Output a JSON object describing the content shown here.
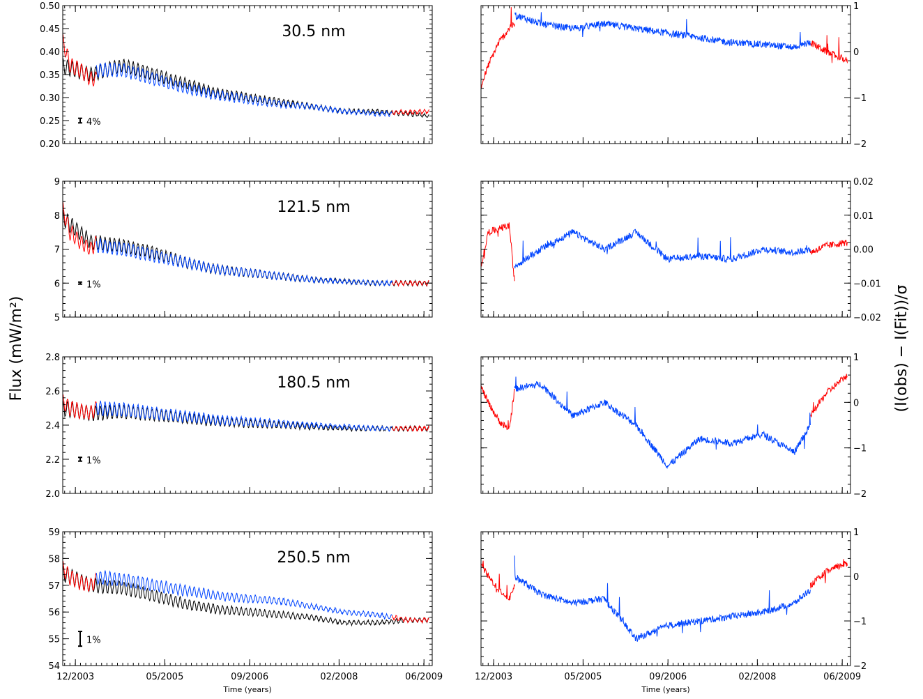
{
  "figure": {
    "left_ylabel": "Flux (mW/m²)",
    "right_ylabel": "(I(obs) − I(Fit))/σ",
    "xlabel": "Time (years)",
    "x_tick_labels": [
      "12/2003",
      "05/2005",
      "09/2006",
      "02/2008",
      "06/2009"
    ]
  },
  "colors": {
    "black": "#000000",
    "red": "#ff0000",
    "blue": "#0044ff"
  },
  "chart_data": [
    {
      "type": "line",
      "panel": "flux",
      "wavelength_label": "30.5 nm",
      "ylim": [
        0.2,
        0.5
      ],
      "y_ticks": [
        "0.20",
        "0.25",
        "0.30",
        "0.35",
        "0.40",
        "0.45",
        "0.50"
      ],
      "error_bar_label": "4%",
      "error_bar_value": 0.25,
      "series": [
        {
          "color": "black",
          "x": [
            "2003-09",
            "2004-03",
            "2004-09",
            "2005-03",
            "2005-09",
            "2006-03",
            "2006-09",
            "2007-03",
            "2007-09",
            "2008-03",
            "2008-09",
            "2009-03",
            "2009-07"
          ],
          "values": [
            0.37,
            0.35,
            0.37,
            0.35,
            0.33,
            0.31,
            0.3,
            0.29,
            0.28,
            0.27,
            0.27,
            0.265,
            0.26
          ]
        },
        {
          "color": "red",
          "x": [
            "2003-09",
            "2003-11",
            "2004-01",
            "2004-03",
            "2004-04"
          ],
          "values": [
            0.45,
            0.37,
            0.36,
            0.34,
            0.34
          ]
        },
        {
          "color": "blue",
          "x": [
            "2004-04",
            "2004-09",
            "2005-03",
            "2005-09",
            "2006-03",
            "2006-09",
            "2007-03",
            "2007-09",
            "2008-03",
            "2008-09",
            "2008-12"
          ],
          "values": [
            0.36,
            0.36,
            0.34,
            0.32,
            0.305,
            0.295,
            0.285,
            0.28,
            0.27,
            0.265,
            0.265
          ]
        },
        {
          "color": "red",
          "x": [
            "2008-12",
            "2009-03",
            "2009-07"
          ],
          "values": [
            0.268,
            0.268,
            0.27
          ]
        }
      ]
    },
    {
      "type": "line",
      "panel": "residual",
      "wavelength_label": "30.5 nm",
      "ylim": [
        -2,
        1
      ],
      "y_ticks": [
        "−2",
        "−1",
        "0",
        "1"
      ],
      "series": [
        {
          "color": "red",
          "x": [
            "2003-09",
            "2003-11",
            "2004-01",
            "2004-03",
            "2004-04"
          ],
          "values": [
            -1.0,
            -0.3,
            0.2,
            0.5,
            0.6
          ]
        },
        {
          "color": "blue",
          "x": [
            "2004-04",
            "2004-09",
            "2005-03",
            "2005-09",
            "2006-03",
            "2006-09",
            "2007-03",
            "2007-09",
            "2008-03",
            "2008-09",
            "2008-12"
          ],
          "values": [
            0.8,
            0.6,
            0.5,
            0.6,
            0.5,
            0.4,
            0.3,
            0.2,
            0.15,
            0.1,
            0.2
          ]
        },
        {
          "color": "red",
          "x": [
            "2008-12",
            "2009-03",
            "2009-07"
          ],
          "values": [
            0.2,
            0.0,
            -0.2
          ]
        }
      ]
    },
    {
      "type": "line",
      "panel": "flux",
      "wavelength_label": "121.5 nm",
      "ylim": [
        5,
        9
      ],
      "y_ticks": [
        "5",
        "6",
        "7",
        "8",
        "9"
      ],
      "error_bar_label": "1%",
      "error_bar_value": 6.0,
      "series": [
        {
          "color": "black",
          "x": [
            "2003-09",
            "2004-03",
            "2004-09",
            "2005-03",
            "2005-09",
            "2006-03",
            "2006-09",
            "2007-03",
            "2007-09",
            "2008-03",
            "2008-09",
            "2009-03",
            "2009-07"
          ],
          "values": [
            8.0,
            7.2,
            7.1,
            6.9,
            6.6,
            6.4,
            6.3,
            6.2,
            6.1,
            6.05,
            6.0,
            6.0,
            6.0
          ]
        },
        {
          "color": "red",
          "x": [
            "2003-09",
            "2003-11",
            "2004-01",
            "2004-03",
            "2004-04"
          ],
          "values": [
            8.5,
            7.5,
            7.2,
            7.0,
            7.2
          ]
        },
        {
          "color": "blue",
          "x": [
            "2004-04",
            "2004-09",
            "2005-03",
            "2005-09",
            "2006-03",
            "2006-09",
            "2007-03",
            "2007-09",
            "2008-03",
            "2008-09",
            "2008-12"
          ],
          "values": [
            7.1,
            7.0,
            6.8,
            6.6,
            6.4,
            6.3,
            6.2,
            6.1,
            6.05,
            6.0,
            6.0
          ]
        },
        {
          "color": "red",
          "x": [
            "2008-12",
            "2009-03",
            "2009-07"
          ],
          "values": [
            6.0,
            6.0,
            6.0
          ]
        }
      ]
    },
    {
      "type": "line",
      "panel": "residual",
      "wavelength_label": "121.5 nm",
      "ylim": [
        -0.02,
        0.02
      ],
      "y_ticks": [
        "−0.02",
        "−0.01",
        "0.00",
        "0.01",
        "0.02"
      ],
      "series": [
        {
          "color": "red",
          "x": [
            "2003-09",
            "2003-11",
            "2004-01",
            "2004-03",
            "2004-04"
          ],
          "values": [
            -0.01,
            0.005,
            0.006,
            0.007,
            -0.01
          ]
        },
        {
          "color": "blue",
          "x": [
            "2004-04",
            "2004-09",
            "2005-03",
            "2005-09",
            "2006-03",
            "2006-09",
            "2007-03",
            "2007-09",
            "2008-03",
            "2008-09",
            "2008-12"
          ],
          "values": [
            -0.005,
            0.0,
            0.005,
            0.0,
            0.005,
            -0.003,
            -0.002,
            -0.003,
            0.0,
            -0.001,
            0.0
          ]
        },
        {
          "color": "red",
          "x": [
            "2008-12",
            "2009-03",
            "2009-07"
          ],
          "values": [
            -0.001,
            0.001,
            0.002
          ]
        }
      ]
    },
    {
      "type": "line",
      "panel": "flux",
      "wavelength_label": "180.5 nm",
      "ylim": [
        2.0,
        2.8
      ],
      "y_ticks": [
        "2.0",
        "2.2",
        "2.4",
        "2.6",
        "2.8"
      ],
      "error_bar_label": "1%",
      "error_bar_value": 2.2,
      "series": [
        {
          "color": "black",
          "x": [
            "2003-09",
            "2004-03",
            "2004-09",
            "2005-03",
            "2005-09",
            "2006-03",
            "2006-09",
            "2007-03",
            "2007-09",
            "2008-03",
            "2008-09",
            "2009-03",
            "2009-07"
          ],
          "values": [
            2.5,
            2.47,
            2.48,
            2.46,
            2.44,
            2.42,
            2.41,
            2.4,
            2.39,
            2.38,
            2.38,
            2.38,
            2.38
          ]
        },
        {
          "color": "red",
          "x": [
            "2003-09",
            "2003-11",
            "2004-01",
            "2004-03",
            "2004-04"
          ],
          "values": [
            2.55,
            2.5,
            2.48,
            2.47,
            2.5
          ]
        },
        {
          "color": "blue",
          "x": [
            "2004-04",
            "2004-09",
            "2005-03",
            "2005-09",
            "2006-03",
            "2006-09",
            "2007-03",
            "2007-09",
            "2008-03",
            "2008-09",
            "2008-12"
          ],
          "values": [
            2.5,
            2.49,
            2.47,
            2.45,
            2.43,
            2.42,
            2.41,
            2.4,
            2.39,
            2.38,
            2.38
          ]
        },
        {
          "color": "red",
          "x": [
            "2008-12",
            "2009-03",
            "2009-07"
          ],
          "values": [
            2.38,
            2.38,
            2.38
          ]
        }
      ]
    },
    {
      "type": "line",
      "panel": "residual",
      "wavelength_label": "180.5 nm",
      "ylim": [
        -2,
        1
      ],
      "y_ticks": [
        "−2",
        "−1",
        "0",
        "1"
      ],
      "series": [
        {
          "color": "red",
          "x": [
            "2003-09",
            "2003-11",
            "2004-01",
            "2004-03",
            "2004-04"
          ],
          "values": [
            0.5,
            0.0,
            -0.4,
            -0.6,
            0.3
          ]
        },
        {
          "color": "blue",
          "x": [
            "2004-04",
            "2004-09",
            "2005-03",
            "2005-09",
            "2006-03",
            "2006-09",
            "2007-03",
            "2007-09",
            "2008-03",
            "2008-09",
            "2008-12"
          ],
          "values": [
            0.3,
            0.4,
            -0.3,
            0.0,
            -0.5,
            -1.4,
            -0.8,
            -0.9,
            -0.7,
            -1.1,
            -0.5
          ]
        },
        {
          "color": "red",
          "x": [
            "2008-12",
            "2009-03",
            "2009-07"
          ],
          "values": [
            -0.3,
            0.2,
            0.6
          ]
        }
      ]
    },
    {
      "type": "line",
      "panel": "flux",
      "wavelength_label": "250.5 nm",
      "ylim": [
        54,
        59
      ],
      "y_ticks": [
        "54",
        "55",
        "56",
        "57",
        "58",
        "59"
      ],
      "error_bar_label": "1%",
      "error_bar_value": 55.0,
      "series": [
        {
          "color": "black",
          "x": [
            "2003-09",
            "2004-03",
            "2004-09",
            "2005-03",
            "2005-09",
            "2006-03",
            "2006-09",
            "2007-03",
            "2007-09",
            "2008-03",
            "2008-09",
            "2009-03",
            "2009-07"
          ],
          "values": [
            57.5,
            57.0,
            56.9,
            56.6,
            56.3,
            56.1,
            56.0,
            55.9,
            55.8,
            55.6,
            55.6,
            55.7,
            55.7
          ]
        },
        {
          "color": "red",
          "x": [
            "2003-09",
            "2003-11",
            "2004-01",
            "2004-03",
            "2004-04"
          ],
          "values": [
            57.8,
            57.3,
            57.1,
            57.0,
            57.2
          ]
        },
        {
          "color": "blue",
          "x": [
            "2004-04",
            "2004-09",
            "2005-03",
            "2005-09",
            "2006-03",
            "2006-09",
            "2007-03",
            "2007-09",
            "2008-03",
            "2008-09",
            "2008-12"
          ],
          "values": [
            57.3,
            57.2,
            57.0,
            56.8,
            56.6,
            56.5,
            56.4,
            56.2,
            56.0,
            55.9,
            55.8
          ]
        },
        {
          "color": "red",
          "x": [
            "2008-12",
            "2009-03",
            "2009-07"
          ],
          "values": [
            55.8,
            55.7,
            55.7
          ]
        }
      ]
    },
    {
      "type": "line",
      "panel": "residual",
      "wavelength_label": "250.5 nm",
      "ylim": [
        -2,
        1
      ],
      "y_ticks": [
        "−2",
        "−1",
        "0",
        "1"
      ],
      "series": [
        {
          "color": "red",
          "x": [
            "2003-09",
            "2003-11",
            "2004-01",
            "2004-03",
            "2004-04"
          ],
          "values": [
            0.4,
            0.0,
            -0.3,
            -0.5,
            -0.2
          ]
        },
        {
          "color": "blue",
          "x": [
            "2004-04",
            "2004-09",
            "2005-03",
            "2005-09",
            "2006-03",
            "2006-09",
            "2007-03",
            "2007-09",
            "2008-03",
            "2008-09",
            "2008-12"
          ],
          "values": [
            0.0,
            -0.4,
            -0.6,
            -0.5,
            -1.4,
            -1.1,
            -1.0,
            -0.9,
            -0.8,
            -0.6,
            -0.3
          ]
        },
        {
          "color": "red",
          "x": [
            "2008-12",
            "2009-03",
            "2009-07"
          ],
          "values": [
            -0.2,
            0.1,
            0.3
          ]
        }
      ]
    }
  ]
}
